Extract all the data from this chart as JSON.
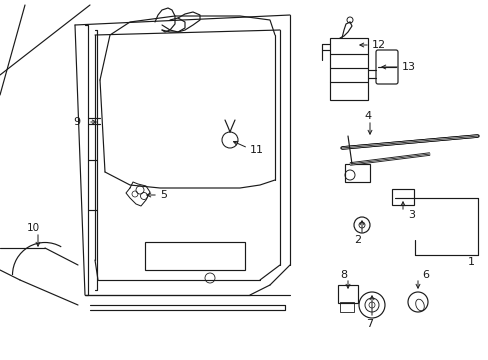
{
  "bg_color": "#ffffff",
  "line_color": "#1a1a1a",
  "lw": 0.85,
  "figsize": [
    4.89,
    3.6
  ],
  "dpi": 100
}
